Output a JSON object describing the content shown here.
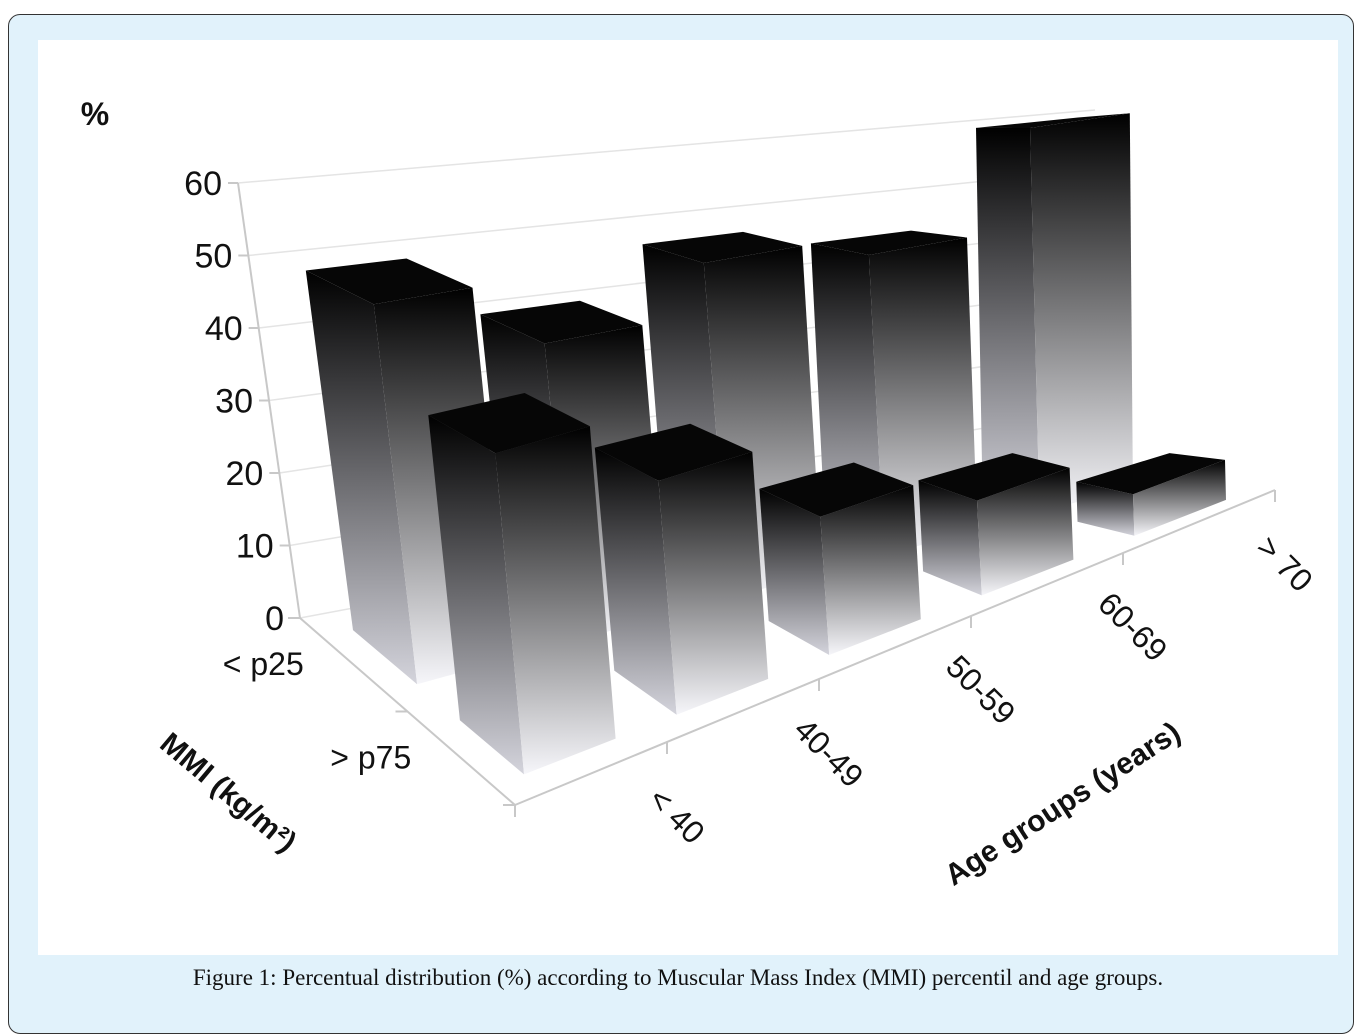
{
  "chart_data": {
    "type": "bar3d",
    "y_label": "%",
    "x_label": "Age groups (years)",
    "z_label": "MMI  (kg/m²)",
    "categories": [
      "< 40",
      "40-49",
      "50-59",
      "60-69",
      "> 70"
    ],
    "series": [
      {
        "name": "< p25",
        "values": [
          49,
          40,
          47,
          44,
          59
        ]
      },
      {
        "name": "> p75",
        "values": [
          38,
          29,
          18,
          13,
          6
        ]
      }
    ],
    "ylim": [
      0,
      60
    ],
    "yticks": [
      0,
      10,
      20,
      30,
      40,
      50,
      60
    ],
    "grid": true
  },
  "caption": "Figure 1: Percentual distribution (%) according to Muscular Mass Index (MMI) percentil and age groups."
}
